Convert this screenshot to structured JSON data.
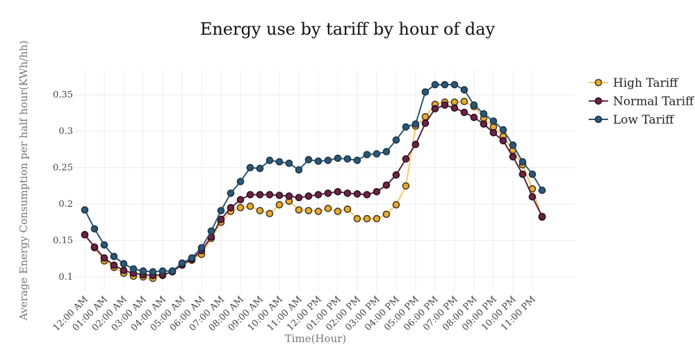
{
  "chart_data": {
    "type": "line",
    "title": "Energy use by tariff by hour of day",
    "xlabel": "Time(Hour)",
    "ylabel": "Average Energy Consumption per half hour(KWh/hh)",
    "ylim": [
      0.08,
      0.385
    ],
    "yticks": [
      0.1,
      0.15,
      0.2,
      0.25,
      0.3,
      0.35
    ],
    "ytick_labels": [
      "0.1",
      "0.15",
      "0.2",
      "0.25",
      "0.3",
      "0.35"
    ],
    "x": [
      "00:00",
      "00:30",
      "01:00",
      "01:30",
      "02:00",
      "02:30",
      "03:00",
      "03:30",
      "04:00",
      "04:30",
      "05:00",
      "05:30",
      "06:00",
      "06:30",
      "07:00",
      "07:30",
      "08:00",
      "08:30",
      "09:00",
      "09:30",
      "10:00",
      "10:30",
      "11:00",
      "11:30",
      "12:00",
      "12:30",
      "13:00",
      "13:30",
      "14:00",
      "14:30",
      "15:00",
      "15:30",
      "16:00",
      "16:30",
      "17:00",
      "17:30",
      "18:00",
      "18:30",
      "19:00",
      "19:30",
      "20:00",
      "20:30",
      "21:00",
      "21:30",
      "22:00",
      "22:30",
      "23:00",
      "23:30"
    ],
    "xtick_labels": [
      "12:00 AM",
      "01:00 AM",
      "02:00 AM",
      "03:00 AM",
      "04:00 AM",
      "05:00 AM",
      "06:00 AM",
      "07:00 AM",
      "08:00 AM",
      "09:00 AM",
      "10:00 AM",
      "11:00 AM",
      "12:00 PM",
      "01:00 PM",
      "02:00 PM",
      "03:00 PM",
      "04:00 PM",
      "05:00 PM",
      "06:00 PM",
      "07:00 PM",
      "08:00 PM",
      "09:00 PM",
      "10:00 PM",
      "11:00 PM"
    ],
    "legend_position": "top-right",
    "grid": true,
    "series": [
      {
        "name": "High Tariff",
        "line_color": "#f5c96a",
        "marker_fill": "#e6ad35",
        "marker_edge": "#4a3a20",
        "values": [
          0.158,
          0.14,
          0.122,
          0.113,
          0.105,
          0.101,
          0.1,
          0.098,
          0.102,
          0.108,
          0.116,
          0.123,
          0.131,
          0.153,
          0.175,
          0.19,
          0.195,
          0.197,
          0.191,
          0.187,
          0.199,
          0.204,
          0.192,
          0.191,
          0.19,
          0.194,
          0.19,
          0.193,
          0.18,
          0.18,
          0.18,
          0.186,
          0.199,
          0.225,
          0.307,
          0.32,
          0.337,
          0.34,
          0.34,
          0.341,
          0.334,
          0.318,
          0.306,
          0.293,
          0.274,
          0.254,
          0.221,
          0.182
        ]
      },
      {
        "name": "Normal Tariff",
        "line_color": "#5a1f3c",
        "marker_fill": "#6b2445",
        "marker_edge": "#2a1020",
        "values": [
          0.158,
          0.141,
          0.126,
          0.116,
          0.109,
          0.105,
          0.103,
          0.102,
          0.103,
          0.107,
          0.117,
          0.124,
          0.136,
          0.155,
          0.179,
          0.195,
          0.206,
          0.213,
          0.213,
          0.213,
          0.212,
          0.211,
          0.209,
          0.211,
          0.213,
          0.215,
          0.217,
          0.215,
          0.214,
          0.213,
          0.217,
          0.226,
          0.24,
          0.262,
          0.282,
          0.311,
          0.331,
          0.336,
          0.332,
          0.326,
          0.319,
          0.31,
          0.298,
          0.287,
          0.265,
          0.241,
          0.21,
          0.183
        ]
      },
      {
        "name": "Low Tariff",
        "line_color": "#2b5573",
        "marker_fill": "#2d5878",
        "marker_edge": "#1b3346",
        "values": [
          0.192,
          0.166,
          0.144,
          0.128,
          0.118,
          0.111,
          0.108,
          0.107,
          0.108,
          0.108,
          0.119,
          0.126,
          0.14,
          0.163,
          0.191,
          0.215,
          0.231,
          0.25,
          0.249,
          0.26,
          0.258,
          0.256,
          0.247,
          0.261,
          0.259,
          0.26,
          0.263,
          0.262,
          0.26,
          0.268,
          0.269,
          0.272,
          0.288,
          0.306,
          0.31,
          0.354,
          0.364,
          0.364,
          0.364,
          0.357,
          0.336,
          0.324,
          0.314,
          0.302,
          0.281,
          0.258,
          0.241,
          0.219
        ]
      }
    ]
  }
}
